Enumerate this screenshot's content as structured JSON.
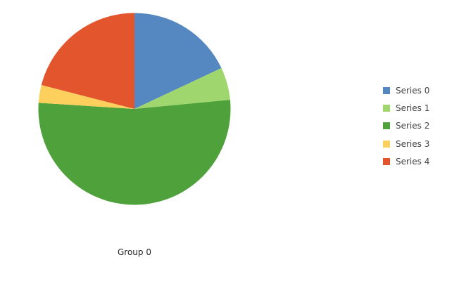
{
  "chart_data": {
    "type": "pie",
    "title": "",
    "group": "Group 0",
    "legend_position": "right",
    "slices": [
      {
        "name": "Series 0",
        "value": 18,
        "color": "#5588c0"
      },
      {
        "name": "Series 1",
        "value": 5.5,
        "color": "#9fd66e"
      },
      {
        "name": "Series 2",
        "value": 52.5,
        "color": "#4ea13b"
      },
      {
        "name": "Series 3",
        "value": 3,
        "color": "#fdcf5c"
      },
      {
        "name": "Series 4",
        "value": 21,
        "color": "#e2552d"
      }
    ]
  }
}
